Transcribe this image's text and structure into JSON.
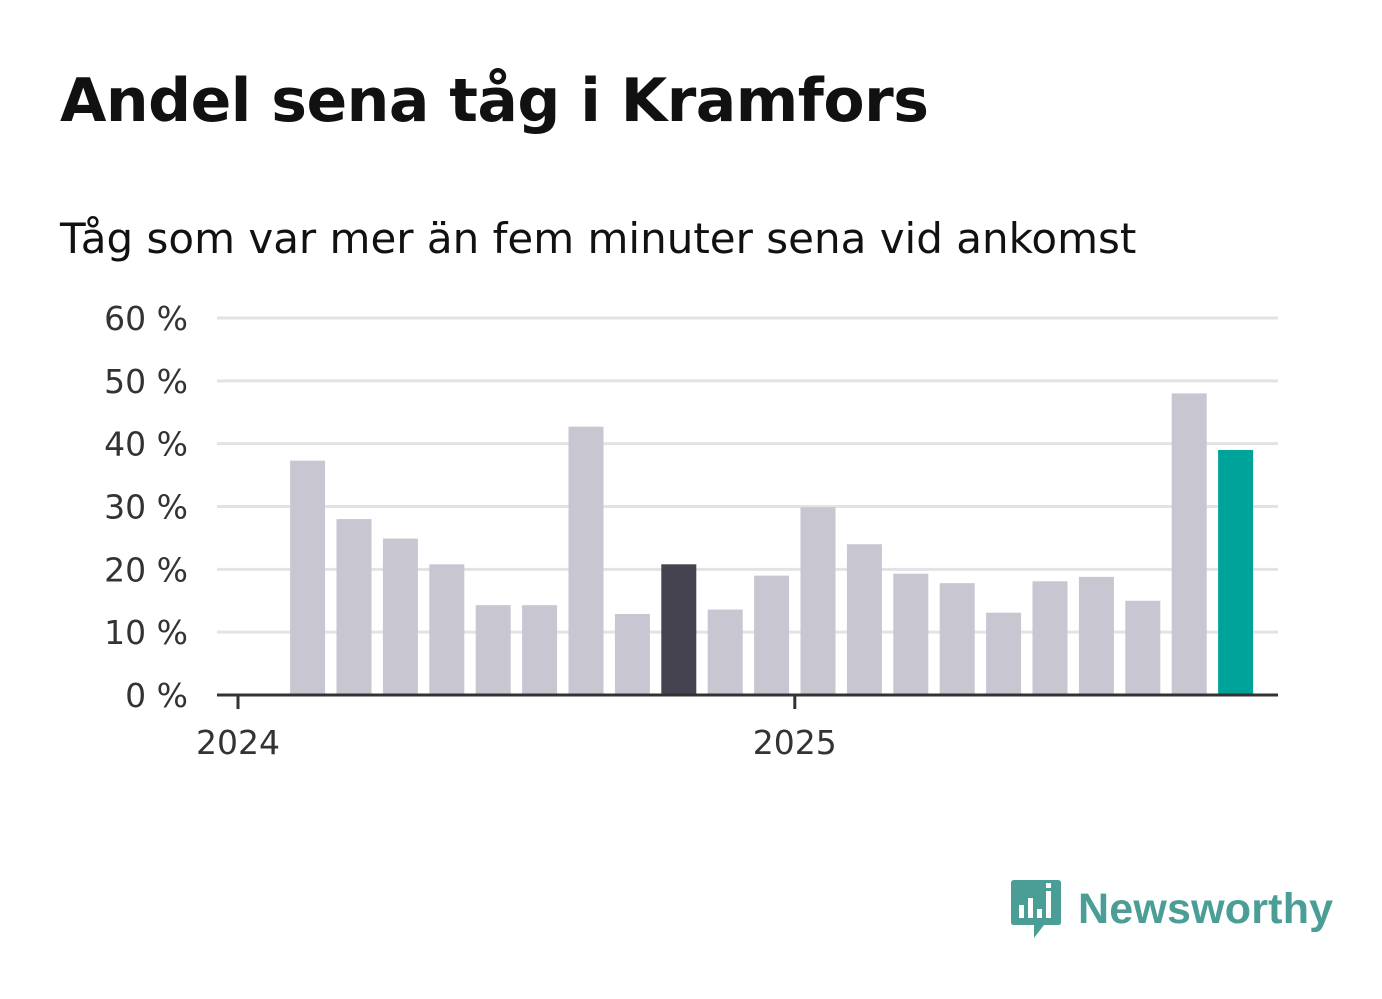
{
  "title": "Andel sena tåg i Kramfors",
  "subtitle": "Tåg som var mer än fem minuter sena vid ankomst",
  "brand": {
    "name": "Newsworthy",
    "color": "#4a9e96",
    "icon": "newsworthy-bar-chart-icon"
  },
  "colors": {
    "default": "#c8c6d1",
    "highlight": "#44434f",
    "latest": "#00a39a",
    "grid": "#e3e3e3",
    "axis": "#333333"
  },
  "chart_data": {
    "type": "bar",
    "title": "Andel sena tåg i Kramfors",
    "subtitle": "Tåg som var mer än fem minuter sena vid ankomst",
    "xlabel": "",
    "ylabel": "",
    "ylim": [
      0,
      60
    ],
    "yticks": [
      0,
      10,
      20,
      30,
      40,
      50,
      60
    ],
    "ytick_suffix": " %",
    "grid": true,
    "x_axis_labels": [
      {
        "label": "2024",
        "at_index": 0
      },
      {
        "label": "2025",
        "at_index": 12
      }
    ],
    "categories": [
      "2024-01",
      "2024-02",
      "2024-03",
      "2024-04",
      "2024-05",
      "2024-06",
      "2024-07",
      "2024-08",
      "2024-09",
      "2024-10",
      "2024-11",
      "2024-12",
      "2025-01",
      "2025-02",
      "2025-03",
      "2025-04",
      "2025-05",
      "2025-06",
      "2025-07",
      "2025-08",
      "2025-09",
      "2025-10",
      "2025-11"
    ],
    "values": [
      null,
      37.3,
      28.0,
      24.9,
      20.8,
      14.3,
      14.3,
      42.7,
      12.9,
      20.8,
      13.6,
      19.0,
      29.9,
      24.0,
      19.3,
      17.8,
      13.1,
      18.1,
      18.8,
      15.0,
      48.0,
      39.0,
      null
    ],
    "highlight": {
      "index": 9,
      "role": "highlight"
    },
    "latest": {
      "index": 21,
      "role": "latest"
    }
  }
}
